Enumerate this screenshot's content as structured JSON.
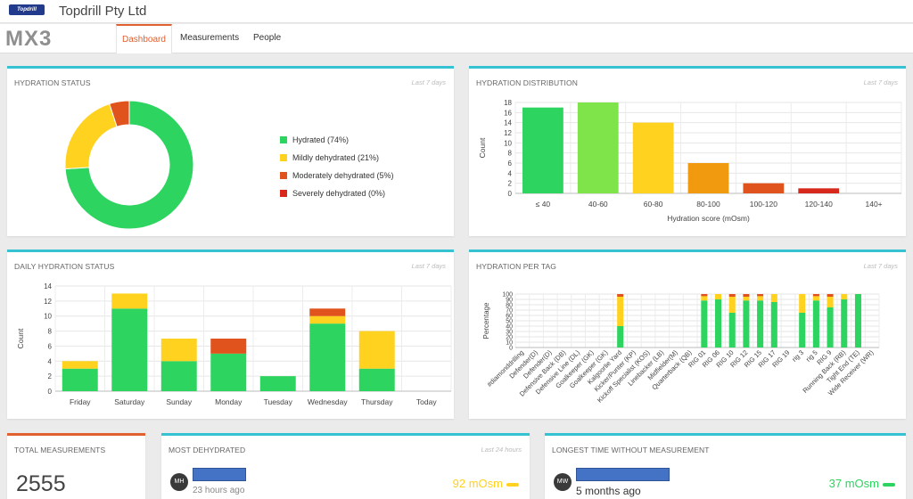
{
  "header": {
    "logo_text": "Topdrill",
    "company": "Topdrill Pty Ltd"
  },
  "nav": {
    "logo": "MX3",
    "tabs": [
      "Dashboard",
      "Measurements",
      "People"
    ],
    "active": 0
  },
  "colors": {
    "accent": "#35c2d2",
    "active_tab": "#e06030",
    "green": "#2ed460",
    "lightgreen": "#7fe34a",
    "yellow": "#ffd21f",
    "orange": "#f29a0f",
    "red_orange": "#e0531c",
    "red": "#d6291c"
  },
  "hydration_status": {
    "title": "HYDRATION STATUS",
    "period": "Last 7 days",
    "legend": [
      {
        "label": "Hydrated (74%)",
        "color": "#2ed460"
      },
      {
        "label": "Mildly dehydrated (21%)",
        "color": "#ffd21f"
      },
      {
        "label": "Moderately dehydrated (5%)",
        "color": "#e0531c"
      },
      {
        "label": "Severely dehydrated (0%)",
        "color": "#d6291c"
      }
    ]
  },
  "hydration_distribution": {
    "title": "HYDRATION DISTRIBUTION",
    "period": "Last 7 days"
  },
  "daily_hydration": {
    "title": "DAILY HYDRATION STATUS",
    "period": "Last 7 days"
  },
  "hydration_per_tag": {
    "title": "HYDRATION PER TAG",
    "period": "Last 7 days"
  },
  "total_measurements": {
    "title": "TOTAL MEASUREMENTS",
    "value": "2555"
  },
  "most_dehydrated": {
    "title": "MOST DEHYDRATED",
    "period": "Last 24 hours",
    "initials": "MH",
    "time": "23 hours ago",
    "value": "92 mOsm",
    "value_color": "#ffd21f"
  },
  "longest_time": {
    "title": "LONGEST TIME WITHOUT MEASUREMENT",
    "initials": "MW",
    "time": "5 months ago",
    "value": "37 mOsm",
    "value_color": "#2ed460"
  },
  "chart_data": [
    {
      "type": "pie",
      "title": "",
      "categories": [
        "Hydrated",
        "Mildly dehydrated",
        "Moderately dehydrated",
        "Severely dehydrated"
      ],
      "values": [
        74,
        21,
        5,
        0
      ],
      "colors": [
        "#2ed460",
        "#ffd21f",
        "#e0531c",
        "#d6291c"
      ]
    },
    {
      "type": "bar",
      "title": "",
      "categories": [
        "≤ 40",
        "40-60",
        "60-80",
        "80-100",
        "100-120",
        "120-140",
        "140+"
      ],
      "values": [
        17,
        18,
        14,
        6,
        2,
        1,
        0
      ],
      "colors": [
        "#2ed460",
        "#7fe34a",
        "#ffd21f",
        "#f29a0f",
        "#e0531c",
        "#d6291c",
        "#d6291c"
      ],
      "xlabel": "Hydration score (mOsm)",
      "ylabel": "Count",
      "ylim": [
        0,
        18
      ],
      "yticks": [
        0,
        2,
        4,
        6,
        8,
        10,
        12,
        14,
        16,
        18
      ]
    },
    {
      "type": "bar",
      "stacked": true,
      "title": "",
      "categories": [
        "Friday",
        "Saturday",
        "Sunday",
        "Monday",
        "Tuesday",
        "Wednesday",
        "Thursday",
        "Today"
      ],
      "series": [
        {
          "values": [
            3,
            11,
            4,
            5,
            2,
            9,
            3,
            0
          ],
          "color": "#2ed460"
        },
        {
          "values": [
            1,
            2,
            3,
            0,
            0,
            1,
            5,
            0
          ],
          "color": "#ffd21f"
        },
        {
          "values": [
            0,
            0,
            0,
            2,
            0,
            1,
            0,
            0
          ],
          "color": "#e0531c"
        }
      ],
      "xlabel": "",
      "ylabel": "Count",
      "ylim": [
        0,
        14
      ],
      "yticks": [
        0,
        2,
        4,
        6,
        8,
        10,
        12,
        14
      ]
    },
    {
      "type": "bar",
      "stacked": true,
      "title": "",
      "ylabel": "Percentage",
      "ylim": [
        0,
        100
      ],
      "yticks": [
        0,
        10,
        20,
        30,
        40,
        50,
        60,
        70,
        80,
        90,
        100
      ],
      "categories": [
        "#diamonddrilling",
        "Defender(D)",
        "Defender(D)",
        "Defensive Back (DB)",
        "Defensive Line (DL)",
        "Goalkeeper (GK)",
        "Goalkeeper (GK)",
        "Kalgoorlie Yard",
        "Kicker/Punter (KP)",
        "Kickoff Specialist (KOS)",
        "Linebacker (LB)",
        "Midfielder(M)",
        "Quarterback (QB)",
        "RIG 01",
        "RIG 06",
        "RIG 10",
        "RIG 12",
        "RIG 15",
        "RIG 17",
        "RIG 19",
        "rig 3",
        "rig 5",
        "RIG 9",
        "Running Back (RB)",
        "Tight End (TE)",
        "Wide Receiver (WR)"
      ],
      "bars": [
        {
          "category": "Kalgoorlie Yard",
          "segments": [
            {
              "v": 40,
              "c": "#2ed460"
            },
            {
              "v": 55,
              "c": "#ffd21f"
            },
            {
              "v": 5,
              "c": "#e0531c"
            }
          ]
        },
        {
          "category": "RIG 01",
          "segments": [
            {
              "v": 88,
              "c": "#2ed460"
            },
            {
              "v": 8,
              "c": "#ffd21f"
            },
            {
              "v": 4,
              "c": "#e0531c"
            }
          ]
        },
        {
          "category": "RIG 06",
          "segments": [
            {
              "v": 90,
              "c": "#2ed460"
            },
            {
              "v": 10,
              "c": "#ffd21f"
            }
          ]
        },
        {
          "category": "RIG 10",
          "segments": [
            {
              "v": 65,
              "c": "#2ed460"
            },
            {
              "v": 30,
              "c": "#ffd21f"
            },
            {
              "v": 5,
              "c": "#e0531c"
            }
          ]
        },
        {
          "category": "RIG 12",
          "segments": [
            {
              "v": 88,
              "c": "#2ed460"
            },
            {
              "v": 7,
              "c": "#ffd21f"
            },
            {
              "v": 5,
              "c": "#e0531c"
            }
          ]
        },
        {
          "category": "RIG 15",
          "segments": [
            {
              "v": 88,
              "c": "#2ed460"
            },
            {
              "v": 8,
              "c": "#ffd21f"
            },
            {
              "v": 4,
              "c": "#e0531c"
            }
          ]
        },
        {
          "category": "RIG 17",
          "segments": [
            {
              "v": 85,
              "c": "#2ed460"
            },
            {
              "v": 15,
              "c": "#ffd21f"
            }
          ]
        },
        {
          "category": "rig 3",
          "segments": [
            {
              "v": 65,
              "c": "#2ed460"
            },
            {
              "v": 35,
              "c": "#ffd21f"
            }
          ]
        },
        {
          "category": "rig 5",
          "segments": [
            {
              "v": 88,
              "c": "#2ed460"
            },
            {
              "v": 8,
              "c": "#ffd21f"
            },
            {
              "v": 4,
              "c": "#e0531c"
            }
          ]
        },
        {
          "category": "RIG 9",
          "segments": [
            {
              "v": 75,
              "c": "#2ed460"
            },
            {
              "v": 20,
              "c": "#ffd21f"
            },
            {
              "v": 5,
              "c": "#e0531c"
            }
          ]
        },
        {
          "category": "Running Back (RB)",
          "segments": [
            {
              "v": 90,
              "c": "#2ed460"
            },
            {
              "v": 10,
              "c": "#ffd21f"
            }
          ]
        },
        {
          "category": "Tight End (TE)",
          "segments": [
            {
              "v": 100,
              "c": "#2ed460"
            }
          ]
        }
      ]
    }
  ]
}
